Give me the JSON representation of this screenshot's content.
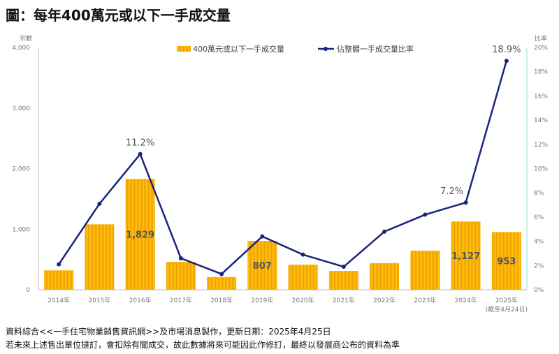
{
  "title": "圖：每年400萬元或以下一手成交量",
  "notes": [
    "資料綜合<<一手住宅物業銷售資訊網>>及市場消息製作，更新日期：2025年4月25日",
    "若未來上述售出單位撻訂，會扣除有關成交，故此數據將來可能因此作修訂，最終以發展商公布的資料為準"
  ],
  "chart_data": {
    "type": "bar+line",
    "title": "每年400萬元或以下一手成交量",
    "categories": [
      "2014年",
      "2015年",
      "2016年",
      "2017年",
      "2018年",
      "2019年",
      "2020年",
      "2021年",
      "2022年",
      "2023年",
      "2024年",
      "2025年"
    ],
    "category_note": {
      "2025年": "(截至4月24日)"
    },
    "ylabel_left": "宗數",
    "ylabel_right": "比率",
    "ylim_left": [
      0,
      4000
    ],
    "yticks_left": [
      "0",
      "1,000",
      "2,000",
      "3,000",
      "4,000"
    ],
    "ylim_right": [
      0,
      20
    ],
    "yticks_right": [
      "0%",
      "2%",
      "4%",
      "6%",
      "8%",
      "10%",
      "12%",
      "14%",
      "16%",
      "18%",
      "20%"
    ],
    "legend_position": "top",
    "grid": false,
    "series": [
      {
        "name": "400萬元或以下一手成交量",
        "kind": "bar",
        "color": "#f5b800",
        "values": [
          320,
          1080,
          1829,
          460,
          210,
          807,
          415,
          310,
          440,
          645,
          1127,
          953
        ],
        "labels": {
          "2016年": "1,829",
          "2019年": "807",
          "2024年": "1,127",
          "2025年": "953"
        }
      },
      {
        "name": "佔整體一手成交量比率",
        "kind": "line",
        "color": "#1a237e",
        "unit": "%",
        "values": [
          2.1,
          7.1,
          11.2,
          2.6,
          1.3,
          4.4,
          2.9,
          1.9,
          4.8,
          6.2,
          7.2,
          18.9
        ],
        "labels": {
          "2016年": "11.2%",
          "2024年": "7.2%",
          "2025年": "18.9%"
        }
      }
    ]
  }
}
